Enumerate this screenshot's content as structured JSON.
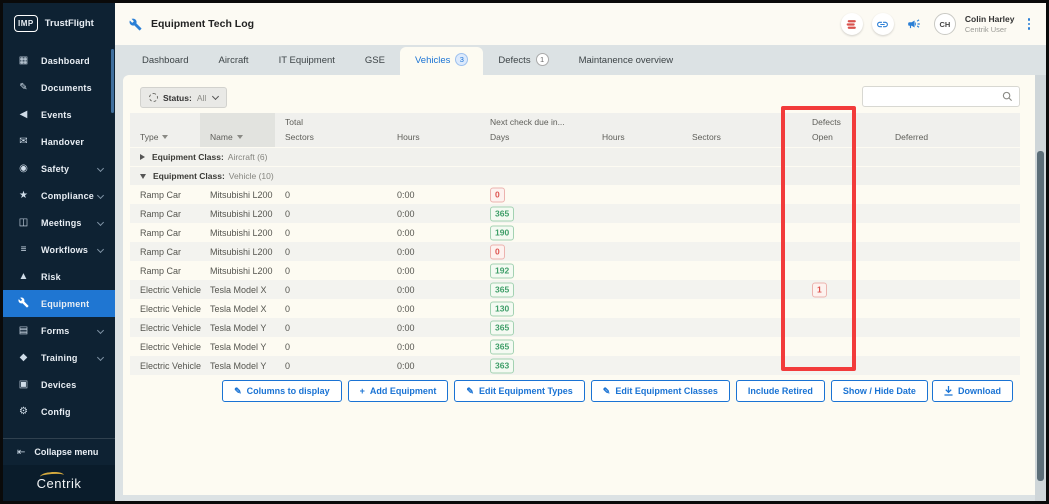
{
  "brand": {
    "logo": "IMP",
    "name": "TrustFlight",
    "footer_logo": "Centrik"
  },
  "header": {
    "title": "Equipment Tech Log",
    "user": {
      "initials": "CH",
      "name": "Colin Harley",
      "role": "Centrik User"
    }
  },
  "sidebar": {
    "items": [
      {
        "label": "Dashboard",
        "icon": "dashboard-icon",
        "glyph": "▦"
      },
      {
        "label": "Documents",
        "icon": "documents-icon",
        "glyph": "✎"
      },
      {
        "label": "Events",
        "icon": "events-icon",
        "glyph": "◀"
      },
      {
        "label": "Handover",
        "icon": "handover-icon",
        "glyph": "✉"
      },
      {
        "label": "Safety",
        "icon": "safety-icon",
        "glyph": "◉",
        "expandable": true
      },
      {
        "label": "Compliance",
        "icon": "compliance-icon",
        "glyph": "★",
        "expandable": true
      },
      {
        "label": "Meetings",
        "icon": "meetings-icon",
        "glyph": "◫",
        "expandable": true
      },
      {
        "label": "Workflows",
        "icon": "workflows-icon",
        "glyph": "≡",
        "expandable": true
      },
      {
        "label": "Risk",
        "icon": "risk-icon",
        "glyph": "▲"
      },
      {
        "label": "Equipment",
        "icon": "equipment-icon",
        "glyph": "",
        "active": true
      },
      {
        "label": "Forms",
        "icon": "forms-icon",
        "glyph": "▤",
        "expandable": true
      },
      {
        "label": "Training",
        "icon": "training-icon",
        "glyph": "◆",
        "expandable": true
      },
      {
        "label": "Devices",
        "icon": "devices-icon",
        "glyph": "▣"
      },
      {
        "label": "Config",
        "icon": "config-icon",
        "glyph": "⚙"
      }
    ],
    "collapse_label": "Collapse menu"
  },
  "tabs": [
    {
      "label": "Dashboard"
    },
    {
      "label": "Aircraft"
    },
    {
      "label": "IT Equipment"
    },
    {
      "label": "GSE"
    },
    {
      "label": "Vehicles",
      "badge": "3",
      "active": true
    },
    {
      "label": "Defects",
      "badge": "1"
    },
    {
      "label": "Maintanence overview"
    }
  ],
  "toolbar": {
    "status_label": "Status:",
    "status_value": "All"
  },
  "search": {
    "value": "",
    "placeholder": ""
  },
  "table": {
    "header_groups": {
      "total": "Total",
      "next_check": "Next check due in...",
      "defects": "Defects"
    },
    "columns": [
      "Type",
      "Name",
      "Sectors",
      "Hours",
      "Days",
      "Hours",
      "Sectors",
      "Open",
      "Deferred"
    ],
    "groups": [
      {
        "label": "Equipment Class:",
        "value": "Aircraft (6)",
        "state": "collapsed"
      },
      {
        "label": "Equipment Class:",
        "value": "Vehicle (10)",
        "state": "expanded"
      }
    ],
    "rows": [
      {
        "type": "Ramp Car",
        "name": "Mitsubishi L200",
        "total_sectors": "0",
        "hours": "0:00",
        "days": "0",
        "days_color": "red",
        "defects_open": ""
      },
      {
        "type": "Ramp Car",
        "name": "Mitsubishi L200",
        "total_sectors": "0",
        "hours": "0:00",
        "days": "365",
        "days_color": "green",
        "defects_open": ""
      },
      {
        "type": "Ramp Car",
        "name": "Mitsubishi L200",
        "total_sectors": "0",
        "hours": "0:00",
        "days": "190",
        "days_color": "green",
        "defects_open": ""
      },
      {
        "type": "Ramp Car",
        "name": "Mitsubishi L200",
        "total_sectors": "0",
        "hours": "0:00",
        "days": "0",
        "days_color": "red",
        "defects_open": ""
      },
      {
        "type": "Ramp Car",
        "name": "Mitsubishi L200",
        "total_sectors": "0",
        "hours": "0:00",
        "days": "192",
        "days_color": "green",
        "defects_open": ""
      },
      {
        "type": "Electric Vehicle",
        "name": "Tesla Model X",
        "total_sectors": "0",
        "hours": "0:00",
        "days": "365",
        "days_color": "green",
        "defects_open": "1"
      },
      {
        "type": "Electric Vehicle",
        "name": "Tesla Model X",
        "total_sectors": "0",
        "hours": "0:00",
        "days": "130",
        "days_color": "green",
        "defects_open": ""
      },
      {
        "type": "Electric Vehicle",
        "name": "Tesla Model Y",
        "total_sectors": "0",
        "hours": "0:00",
        "days": "365",
        "days_color": "green",
        "defects_open": ""
      },
      {
        "type": "Electric Vehicle",
        "name": "Tesla Model Y",
        "total_sectors": "0",
        "hours": "0:00",
        "days": "365",
        "days_color": "green",
        "defects_open": ""
      },
      {
        "type": "Electric Vehicle",
        "name": "Tesla Model Y",
        "total_sectors": "0",
        "hours": "0:00",
        "days": "363",
        "days_color": "green",
        "defects_open": ""
      }
    ]
  },
  "footer": {
    "buttons": [
      {
        "label": "Columns to display",
        "icon": "edit-icon",
        "glyph": "✎"
      },
      {
        "label": "Add Equipment",
        "icon": "plus-icon",
        "glyph": "+"
      },
      {
        "label": "Edit Equipment Types",
        "icon": "edit-icon",
        "glyph": "✎"
      },
      {
        "label": "Edit Equipment Classes",
        "icon": "edit-icon",
        "glyph": "✎"
      },
      {
        "label": "Include Retired"
      },
      {
        "label": "Show / Hide Date"
      }
    ],
    "download": {
      "label": "Download",
      "icon": "download-icon"
    }
  },
  "annotation": {
    "type": "highlight-box",
    "target": "defects-open-column",
    "color": "#f23b3b"
  },
  "colors": {
    "accent_blue": "#1a73d4",
    "sidebar_bg": "#0e2233",
    "active_item": "#1f76d2",
    "badge_green": "#3e9e68",
    "badge_red": "#dd5450",
    "annotation_red": "#f23b3b"
  }
}
